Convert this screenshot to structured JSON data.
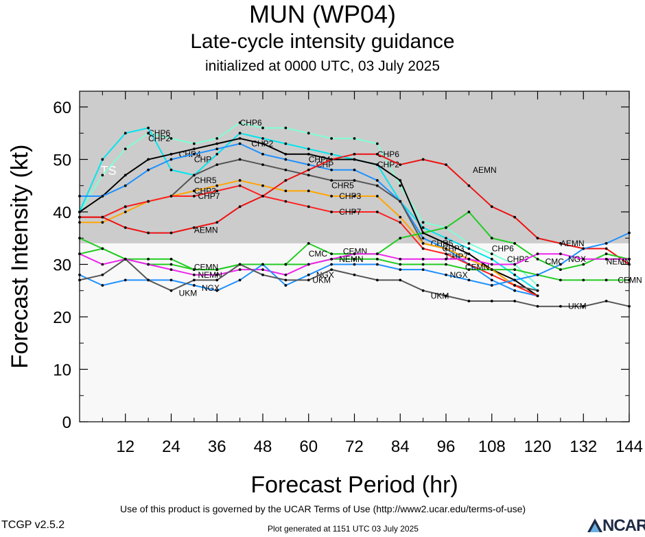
{
  "header": {
    "title": "MUN (WP04)",
    "subtitle": "Late-cycle intensity guidance",
    "initialized": "initialized at 0000 UTC, 03 July 2025"
  },
  "footer": {
    "terms": "Use of this product is governed by the UCAR Terms of Use (http://www2.ucar.edu/terms-of-use)",
    "version": "TCGP v2.5.2",
    "generated": "Plot generated at 1151 UTC   03 July 2025",
    "logo_text": "NCAR"
  },
  "chart_data": {
    "type": "line",
    "xlabel": "Forecast Period (hr)",
    "ylabel": "Forecast Intensity (kt)",
    "xlim": [
      0,
      144
    ],
    "ylim": [
      0,
      63
    ],
    "xticks": [
      12,
      24,
      36,
      48,
      60,
      72,
      84,
      96,
      108,
      120,
      132,
      144
    ],
    "yticks": [
      0,
      10,
      20,
      30,
      40,
      50,
      60
    ],
    "grid": false,
    "bands": [
      {
        "label": "TS",
        "from": 34,
        "to": 63,
        "color": "#cccccc"
      },
      {
        "label": "",
        "from": 0,
        "to": 34,
        "color": "#f8f8f8"
      }
    ],
    "series": [
      {
        "name": "CHP6",
        "color": "#7fffd4",
        "x": [
          0,
          6,
          12,
          18,
          24,
          30,
          36,
          42,
          48,
          54,
          60,
          66,
          72,
          78,
          84,
          90,
          96,
          102,
          108,
          114,
          120
        ],
        "y": [
          40,
          47,
          52,
          55,
          54,
          53,
          54,
          57,
          56,
          56,
          55,
          54,
          54,
          53,
          45,
          38,
          37,
          34,
          32,
          30,
          26
        ],
        "label_at": [
          [
            18,
            55
          ],
          [
            42,
            57
          ],
          [
            78,
            51
          ],
          [
            108,
            33
          ]
        ]
      },
      {
        "name": "CHP2",
        "color": "#00e5ee",
        "x": [
          0,
          6,
          12,
          18,
          24,
          30,
          36,
          42,
          48,
          54,
          60,
          66,
          72,
          78,
          84,
          90,
          96,
          102,
          108,
          114,
          120
        ],
        "y": [
          40,
          50,
          55,
          56,
          48,
          47,
          51,
          55,
          54,
          53,
          52,
          51,
          50,
          49,
          42,
          37,
          35,
          33,
          31,
          28,
          25
        ],
        "label_at": [
          [
            18,
            54
          ],
          [
            45,
            53
          ],
          [
            78,
            49
          ],
          [
            112,
            31
          ]
        ]
      },
      {
        "name": "CHP4",
        "color": "#000000",
        "x": [
          0,
          6,
          12,
          18,
          24,
          30,
          36,
          42,
          48,
          54,
          60,
          66,
          72,
          78,
          84,
          90,
          96,
          102,
          108,
          114,
          120
        ],
        "y": [
          40,
          43,
          47,
          50,
          51,
          52,
          53,
          54,
          53,
          51,
          51,
          50,
          50,
          49,
          46,
          36,
          34,
          32,
          29,
          27,
          24
        ],
        "label_at": [
          [
            26,
            51
          ],
          [
            60,
            50
          ]
        ]
      },
      {
        "name": "CHP",
        "color": "#1e90ff",
        "x": [
          0,
          6,
          12,
          18,
          24,
          30,
          36,
          42,
          48,
          54,
          60,
          66,
          72,
          78,
          84,
          90,
          96,
          102,
          108,
          114,
          120
        ],
        "y": [
          43,
          43,
          45,
          48,
          50,
          51,
          52,
          53,
          51,
          50,
          49,
          48,
          48,
          46,
          42,
          35,
          33,
          30,
          27,
          25,
          24
        ],
        "label_at": [
          [
            30,
            50
          ],
          [
            62,
            49
          ]
        ]
      },
      {
        "name": "CHR5",
        "color": "#555555",
        "x": [
          0,
          6,
          12,
          18,
          24,
          30,
          36,
          42,
          48,
          54,
          60,
          66,
          72,
          78,
          84,
          90,
          96,
          102,
          108,
          114,
          120
        ],
        "y": [
          39,
          39,
          41,
          42,
          43,
          47,
          49,
          50,
          49,
          48,
          47,
          46,
          46,
          45,
          42,
          34,
          33,
          31,
          29,
          26,
          25
        ],
        "label_at": [
          [
            30,
            46
          ],
          [
            66,
            45
          ],
          [
            92,
            34
          ]
        ]
      },
      {
        "name": "CHP3",
        "color": "#ffa500",
        "x": [
          0,
          6,
          12,
          18,
          24,
          30,
          36,
          42,
          48,
          54,
          60,
          66,
          72,
          78,
          84,
          90,
          96,
          102,
          108,
          114,
          120
        ],
        "y": [
          38,
          38,
          40,
          42,
          43,
          44,
          45,
          46,
          45,
          44,
          44,
          43,
          43,
          43,
          39,
          34,
          33,
          31,
          29,
          26,
          24
        ],
        "label_at": [
          [
            30,
            44
          ],
          [
            68,
            43
          ],
          [
            95,
            33
          ]
        ]
      },
      {
        "name": "CHP7",
        "color": "#ff2020",
        "x": [
          0,
          6,
          12,
          18,
          24,
          30,
          36,
          42,
          48,
          54,
          60,
          66,
          72,
          78,
          84,
          90,
          96,
          102,
          108,
          114,
          120
        ],
        "y": [
          39,
          39,
          41,
          42,
          43,
          43,
          44,
          45,
          43,
          42,
          41,
          40,
          40,
          40,
          38,
          33,
          32,
          30,
          28,
          26,
          24
        ],
        "label_at": [
          [
            31,
            43
          ],
          [
            68,
            40
          ],
          [
            96,
            31.5
          ]
        ]
      },
      {
        "name": "AEMN",
        "color": "#ee1111",
        "x": [
          0,
          6,
          12,
          18,
          24,
          30,
          36,
          42,
          48,
          54,
          60,
          66,
          72,
          78,
          84,
          90,
          96,
          102,
          108,
          114,
          120,
          126,
          132,
          138,
          144
        ],
        "y": [
          39,
          39,
          37,
          36,
          36,
          37,
          38,
          41,
          43,
          46,
          48,
          50,
          51,
          51,
          49,
          50,
          49,
          45,
          41,
          39,
          35,
          34,
          33,
          33,
          30
        ],
        "label_at": [
          [
            30,
            36.5
          ],
          [
            103,
            48
          ],
          [
            126,
            34
          ]
        ]
      },
      {
        "name": "CMC",
        "color": "#22cc22",
        "x": [
          0,
          6,
          12,
          18,
          24,
          30,
          36,
          42,
          48,
          54,
          60,
          66,
          72,
          78,
          84,
          90,
          96,
          102,
          108,
          114,
          120,
          126,
          132,
          138,
          144
        ],
        "y": [
          35,
          33,
          31,
          31,
          31,
          29,
          29,
          30,
          30,
          30,
          34,
          32,
          32,
          32,
          35,
          36,
          37,
          40,
          35,
          34,
          31,
          29,
          30,
          32,
          31
        ],
        "label_at": [
          [
            60,
            32
          ],
          [
            122,
            30.5
          ]
        ]
      },
      {
        "name": "CEMN",
        "color": "#22cc22",
        "x": [
          0,
          6,
          12,
          18,
          24,
          30,
          36,
          42,
          48,
          54,
          60,
          66,
          72,
          78,
          84,
          90,
          96,
          102,
          108,
          114,
          120,
          126,
          132,
          138,
          144
        ],
        "y": [
          32,
          33,
          31,
          30,
          30,
          29,
          29,
          30,
          30,
          30,
          30,
          31,
          31,
          31,
          30,
          30,
          30,
          29,
          29,
          29,
          28,
          27,
          27,
          27,
          27
        ],
        "label_at": [
          [
            30,
            29.5
          ],
          [
            69,
            32.5
          ],
          [
            101,
            29.5
          ],
          [
            141,
            27
          ]
        ]
      },
      {
        "name": "NEMN",
        "color": "#ee22ee",
        "x": [
          0,
          6,
          12,
          18,
          24,
          30,
          36,
          42,
          48,
          54,
          60,
          66,
          72,
          78,
          84,
          90,
          96,
          102,
          108,
          114,
          120,
          126,
          132,
          138,
          144
        ],
        "y": [
          32,
          30,
          31,
          30,
          29,
          28,
          28,
          29,
          29,
          28,
          30,
          31,
          32,
          32,
          31,
          31,
          31,
          31,
          30,
          30,
          32,
          32,
          31,
          31,
          31
        ],
        "label_at": [
          [
            31,
            28
          ],
          [
            68,
            31
          ],
          [
            138,
            30.5
          ]
        ]
      },
      {
        "name": "NGX",
        "color": "#1e90ff",
        "x": [
          0,
          6,
          12,
          18,
          24,
          30,
          36,
          42,
          48,
          54,
          60,
          66,
          72,
          78,
          84,
          90,
          96,
          102,
          108,
          114,
          120,
          126,
          132,
          138,
          144
        ],
        "y": [
          28,
          26,
          27,
          27,
          27,
          26,
          25,
          27,
          30,
          26,
          28,
          30,
          30,
          30,
          29,
          29,
          28,
          27,
          26,
          27,
          28,
          30,
          33,
          34,
          36
        ],
        "label_at": [
          [
            32,
            25.5
          ],
          [
            62,
            28
          ],
          [
            97,
            28
          ],
          [
            128,
            31
          ]
        ]
      },
      {
        "name": "UKM",
        "color": "#555555",
        "x": [
          0,
          6,
          12,
          18,
          24,
          30,
          36,
          42,
          48,
          54,
          60,
          66,
          72,
          78,
          84,
          90,
          96,
          102,
          108,
          114,
          120,
          126,
          132,
          138,
          144
        ],
        "y": [
          27,
          28,
          31,
          27,
          25,
          27,
          27,
          30,
          28,
          27,
          27,
          29,
          28,
          27,
          27,
          25,
          24,
          23,
          23,
          23,
          22,
          22,
          22,
          23,
          22
        ],
        "label_at": [
          [
            26,
            24.5
          ],
          [
            61,
            27
          ],
          [
            92,
            24
          ],
          [
            128,
            22
          ]
        ]
      }
    ]
  }
}
